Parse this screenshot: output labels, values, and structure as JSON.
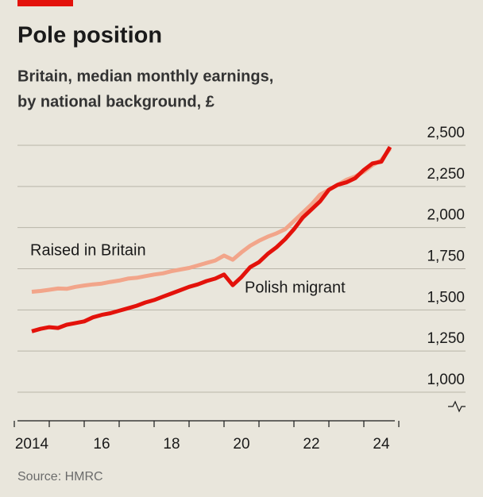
{
  "chart_data": {
    "type": "line",
    "title": "Pole position",
    "subtitle": [
      "Britain, median monthly earnings,",
      "by national background, £"
    ],
    "source": "Source: HMRC",
    "x": [
      2014.5,
      2014.75,
      2015,
      2015.25,
      2015.5,
      2015.75,
      2016,
      2016.25,
      2016.5,
      2016.75,
      2017,
      2017.25,
      2017.5,
      2017.75,
      2018,
      2018.25,
      2018.5,
      2018.75,
      2019,
      2019.25,
      2019.5,
      2019.75,
      2020,
      2020.25,
      2020.5,
      2020.75,
      2021,
      2021.25,
      2021.5,
      2021.75,
      2022,
      2022.25,
      2022.5,
      2022.75,
      2023,
      2023.25,
      2023.5,
      2023.75,
      2024,
      2024.25,
      2024.5,
      2024.75
    ],
    "series": [
      {
        "name": "Raised in Britain",
        "color": "#f2a58a",
        "values": [
          1610,
          1615,
          1622,
          1630,
          1628,
          1640,
          1648,
          1655,
          1660,
          1670,
          1678,
          1690,
          1695,
          1705,
          1715,
          1722,
          1735,
          1745,
          1755,
          1770,
          1785,
          1800,
          1830,
          1805,
          1850,
          1890,
          1920,
          1945,
          1965,
          1990,
          2040,
          2090,
          2140,
          2200,
          2230,
          2260,
          2290,
          2310,
          2340,
          2380,
          2410,
          2480
        ]
      },
      {
        "name": "Polish migrant",
        "color": "#e3120b",
        "values": [
          1370,
          1385,
          1395,
          1390,
          1410,
          1420,
          1430,
          1455,
          1470,
          1480,
          1495,
          1510,
          1525,
          1545,
          1560,
          1580,
          1600,
          1620,
          1640,
          1655,
          1675,
          1690,
          1715,
          1650,
          1700,
          1760,
          1790,
          1840,
          1880,
          1930,
          1990,
          2060,
          2110,
          2160,
          2230,
          2260,
          2275,
          2300,
          2350,
          2390,
          2400,
          2490
        ]
      }
    ],
    "xlim": [
      2014,
      2025
    ],
    "xticks": [
      {
        "value": 2014.5,
        "label": "2014"
      },
      {
        "value": 2016.5,
        "label": "16"
      },
      {
        "value": 2018.5,
        "label": "18"
      },
      {
        "value": 2020.5,
        "label": "20"
      },
      {
        "value": 2022.5,
        "label": "22"
      },
      {
        "value": 2024.5,
        "label": "24"
      }
    ],
    "xminor": [
      2014,
      2015,
      2016,
      2017,
      2018,
      2019,
      2020,
      2021,
      2022,
      2023,
      2024,
      2025
    ],
    "ylim": [
      1000,
      2500
    ],
    "yticks": [
      {
        "value": 1000,
        "label": "1,000"
      },
      {
        "value": 1250,
        "label": "1,250"
      },
      {
        "value": 1500,
        "label": "1,500"
      },
      {
        "value": 1750,
        "label": "1,750"
      },
      {
        "value": 2000,
        "label": "2,000"
      },
      {
        "value": 2250,
        "label": "2,250"
      },
      {
        "value": 2500,
        "label": "2,500"
      }
    ],
    "grid": true
  }
}
